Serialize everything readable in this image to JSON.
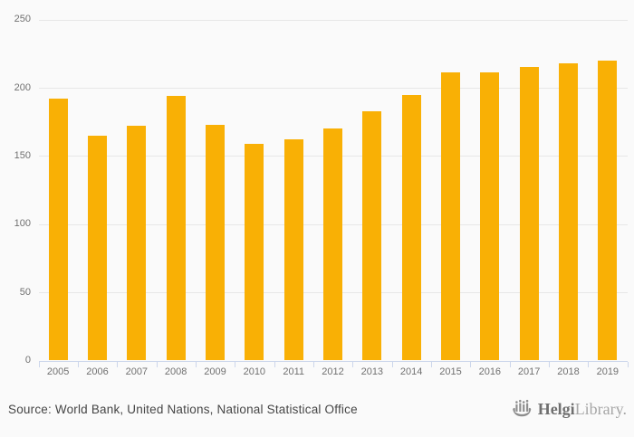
{
  "chart_data": {
    "type": "bar",
    "categories": [
      "2005",
      "2006",
      "2007",
      "2008",
      "2009",
      "2010",
      "2011",
      "2012",
      "2013",
      "2014",
      "2015",
      "2016",
      "2017",
      "2018",
      "2019"
    ],
    "values": [
      192,
      165,
      172,
      194,
      173,
      159,
      162,
      170,
      183,
      195,
      211,
      211,
      215,
      218,
      220
    ],
    "title": "",
    "xlabel": "",
    "ylabel": "",
    "ylim": [
      0,
      250
    ],
    "yticks": [
      0,
      50,
      100,
      150,
      200,
      250
    ],
    "grid": true,
    "legend": "none",
    "bar_color": "#F9B005"
  },
  "colors": {
    "background": "#fafafa",
    "gridline": "#e7e7e7",
    "axis_line": "#ccd6eb",
    "axis_label": "#707070",
    "bar": "#F9B005",
    "source_text": "#454545",
    "logo_primary": "#6f6f6f",
    "logo_secondary": "#a6a6a6"
  },
  "footer": {
    "source": "Source: World Bank, United Nations, National Statistical Office",
    "logo": {
      "icon": "helgi-ship-icon",
      "brand_primary": "Helgi",
      "brand_secondary": "Library."
    }
  }
}
